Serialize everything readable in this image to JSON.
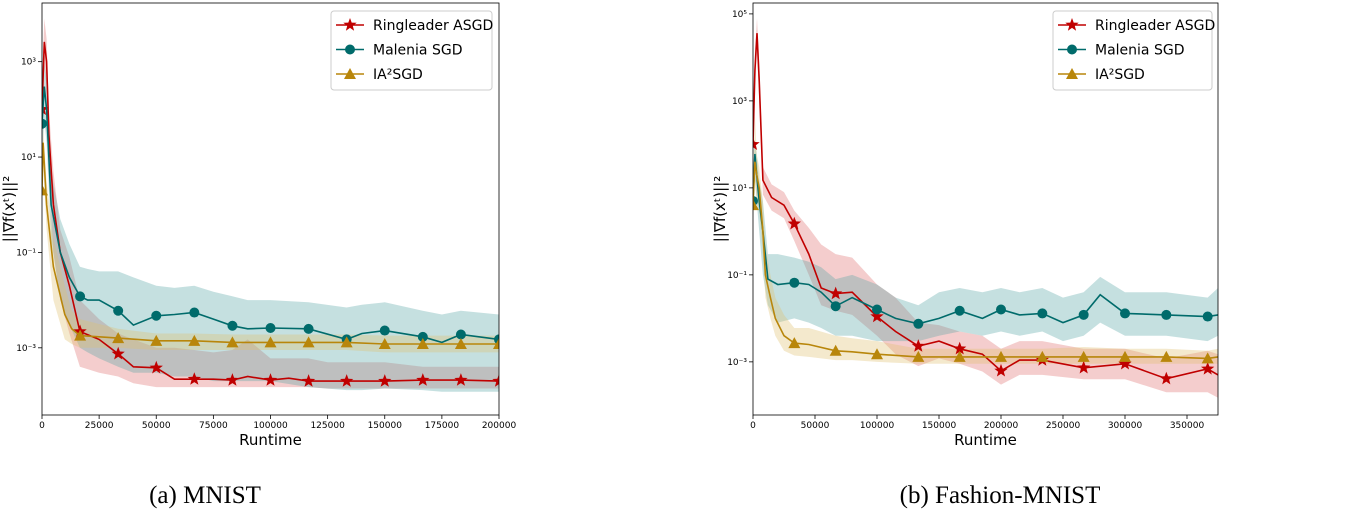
{
  "chart_data": [
    {
      "type": "line",
      "caption": "(a) MNIST",
      "xlabel": "Runtime",
      "ylabel": "||∇f(xᵗ)||²",
      "xlim": [
        0,
        200000
      ],
      "ylim": [
        3.9e-05,
        17000
      ],
      "yscale": "log",
      "grid": false,
      "legend_position": "top-right",
      "x_ticks": [
        {
          "value": 0,
          "label": "0"
        },
        {
          "value": 25000,
          "label": "25000"
        },
        {
          "value": 50000,
          "label": "50000"
        },
        {
          "value": 75000,
          "label": "75000"
        },
        {
          "value": 100000,
          "label": "100000"
        },
        {
          "value": 125000,
          "label": "125000"
        },
        {
          "value": 150000,
          "label": "150000"
        },
        {
          "value": 175000,
          "label": "175000"
        },
        {
          "value": 200000,
          "label": "200000"
        }
      ],
      "y_ticks": [
        {
          "value": 1000,
          "label": "10³"
        },
        {
          "value": 10,
          "label": "10¹"
        },
        {
          "value": 0.1,
          "label": "10⁻¹"
        },
        {
          "value": 0.001,
          "label": "10⁻³"
        }
      ],
      "series": [
        {
          "name": "Ringleader ASGD",
          "color": "#c00000",
          "band_color": "#e07070",
          "marker": "star",
          "x": [
            0,
            1000,
            2000,
            3000,
            5000,
            8000,
            12000,
            16600,
            25000,
            33300,
            40000,
            50000,
            58000,
            66600,
            75000,
            83300,
            90000,
            100000,
            108000,
            116600,
            125000,
            133300,
            150000,
            166600,
            183300,
            200000
          ],
          "y": [
            100,
            2600,
            1000,
            30,
            1,
            0.1,
            0.02,
            0.0022,
            0.0015,
            0.00075,
            0.0004,
            0.00038,
            0.00022,
            0.00022,
            0.00022,
            0.00021,
            0.00025,
            0.00021,
            0.00023,
            0.0002,
            0.0002,
            0.0002,
            0.0002,
            0.00021,
            0.00021,
            0.0002
          ],
          "lower": [
            30,
            800,
            300,
            5,
            0.1,
            0.01,
            0.002,
            0.0004,
            0.0003,
            0.00025,
            0.00018,
            0.00015,
            0.00015,
            0.00015,
            0.00015,
            0.00015,
            0.00015,
            0.00015,
            0.00015,
            0.00015,
            0.00014,
            0.00014,
            0.00014,
            0.00014,
            0.00014,
            0.00014
          ],
          "upper": [
            300,
            8000,
            3000,
            100,
            5,
            0.3,
            0.08,
            0.01,
            0.004,
            0.002,
            0.0015,
            0.001,
            0.001,
            0.0009,
            0.0008,
            0.0009,
            0.0015,
            0.0006,
            0.0006,
            0.0006,
            0.0005,
            0.0005,
            0.0005,
            0.0004,
            0.0004,
            0.0004
          ]
        },
        {
          "name": "Malenia SGD",
          "color": "#006b6b",
          "band_color": "#5aa5a5",
          "marker": "circle",
          "x": [
            0,
            1000,
            2000,
            4000,
            8000,
            12000,
            16600,
            20000,
            25000,
            33300,
            40000,
            50000,
            58000,
            66600,
            75000,
            83300,
            90000,
            100000,
            116600,
            133300,
            140000,
            150000,
            166600,
            175000,
            183300,
            200000
          ],
          "y": [
            50,
            300,
            100,
            1,
            0.1,
            0.03,
            0.012,
            0.01,
            0.01,
            0.006,
            0.003,
            0.0047,
            0.005,
            0.0055,
            0.004,
            0.0029,
            0.0025,
            0.0026,
            0.0025,
            0.0015,
            0.002,
            0.0023,
            0.0017,
            0.0013,
            0.0019,
            0.0015
          ],
          "lower": [
            10,
            60,
            20,
            0.2,
            0.01,
            0.003,
            0.001,
            0.0008,
            0.0006,
            0.0004,
            0.0003,
            0.0003,
            0.00025,
            0.00025,
            0.0002,
            0.0002,
            0.0002,
            0.0002,
            0.00015,
            0.00013,
            0.00013,
            0.00014,
            0.00013,
            0.00012,
            0.00012,
            0.00012
          ],
          "upper": [
            200,
            900,
            400,
            5,
            0.5,
            0.15,
            0.05,
            0.045,
            0.04,
            0.04,
            0.03,
            0.02,
            0.018,
            0.02,
            0.015,
            0.012,
            0.01,
            0.01,
            0.009,
            0.007,
            0.008,
            0.009,
            0.006,
            0.005,
            0.006,
            0.005
          ]
        },
        {
          "name": "IA²SGD",
          "color": "#b8860b",
          "band_color": "#e0c070",
          "marker": "triangle",
          "x": [
            0,
            500,
            2000,
            5000,
            10000,
            13000,
            16600,
            33300,
            50000,
            66600,
            83300,
            100000,
            116600,
            133300,
            150000,
            166600,
            183300,
            200000
          ],
          "y": [
            2,
            20,
            1,
            0.05,
            0.005,
            0.0025,
            0.0018,
            0.0016,
            0.0014,
            0.0014,
            0.0013,
            0.0013,
            0.0013,
            0.0013,
            0.0012,
            0.0012,
            0.0012,
            0.0012
          ],
          "lower": [
            1,
            8,
            0.3,
            0.01,
            0.0015,
            0.0012,
            0.001,
            0.001,
            0.0009,
            0.0009,
            0.0009,
            0.0009,
            0.0009,
            0.0009,
            0.0008,
            0.0008,
            0.0008,
            0.0008
          ],
          "upper": [
            5,
            40,
            3,
            0.2,
            0.02,
            0.006,
            0.004,
            0.0025,
            0.002,
            0.002,
            0.0019,
            0.0019,
            0.0019,
            0.0019,
            0.0018,
            0.0018,
            0.0018,
            0.0018
          ]
        }
      ]
    },
    {
      "type": "line",
      "caption": "(b) Fashion-MNIST",
      "xlabel": "Runtime",
      "ylabel": "||∇f(xᵗ)||²",
      "xlim": [
        0,
        375000
      ],
      "ylim": [
        6e-05,
        178000
      ],
      "yscale": "log",
      "grid": false,
      "legend_position": "top-right",
      "x_ticks": [
        {
          "value": 0,
          "label": "0"
        },
        {
          "value": 50000,
          "label": "50000"
        },
        {
          "value": 100000,
          "label": "100000"
        },
        {
          "value": 150000,
          "label": "150000"
        },
        {
          "value": 200000,
          "label": "200000"
        },
        {
          "value": 250000,
          "label": "250000"
        },
        {
          "value": 300000,
          "label": "300000"
        },
        {
          "value": 350000,
          "label": "350000"
        }
      ],
      "y_ticks": [
        {
          "value": 100000,
          "label": "10⁵"
        },
        {
          "value": 1000,
          "label": "10³"
        },
        {
          "value": 10,
          "label": "10¹"
        },
        {
          "value": 0.1,
          "label": "10⁻¹"
        },
        {
          "value": 0.001,
          "label": "10⁻³"
        }
      ],
      "series": [
        {
          "name": "Ringleader ASGD",
          "color": "#c00000",
          "band_color": "#e07070",
          "marker": "star",
          "x": [
            0,
            1500,
            3200,
            5000,
            8000,
            15000,
            25000,
            33300,
            45000,
            55000,
            66600,
            80000,
            100000,
            115000,
            133300,
            150000,
            166600,
            185000,
            200000,
            215000,
            233300,
            266600,
            300000,
            333300,
            366600,
            375000
          ],
          "y": [
            100,
            5000,
            36000,
            3000,
            15,
            6,
            4,
            1.5,
            0.3,
            0.05,
            0.037,
            0.04,
            0.011,
            0.005,
            0.0023,
            0.003,
            0.002,
            0.0015,
            0.00062,
            0.0011,
            0.0011,
            0.00073,
            0.0009,
            0.00041,
            0.00069,
            0.0005
          ],
          "lower": [
            40,
            2000,
            15000,
            1000,
            7,
            3,
            2,
            0.6,
            0.1,
            0.02,
            0.015,
            0.012,
            0.004,
            0.0015,
            0.0008,
            0.0012,
            0.0009,
            0.0006,
            0.0003,
            0.0005,
            0.0005,
            0.0004,
            0.0004,
            0.0002,
            0.0002,
            0.00015
          ],
          "upper": [
            300,
            12000,
            80000,
            8000,
            30,
            12,
            8,
            3,
            1.2,
            0.5,
            0.3,
            0.25,
            0.06,
            0.03,
            0.008,
            0.007,
            0.005,
            0.004,
            0.002,
            0.003,
            0.003,
            0.002,
            0.002,
            0.0012,
            0.0018,
            0.0015
          ]
        },
        {
          "name": "Malenia SGD",
          "color": "#006b6b",
          "band_color": "#5aa5a5",
          "marker": "circle",
          "x": [
            0,
            1500,
            3000,
            5000,
            8000,
            12000,
            20000,
            33300,
            45000,
            55000,
            66600,
            80000,
            100000,
            115000,
            133300,
            150000,
            166600,
            185000,
            200000,
            215000,
            233300,
            250000,
            266600,
            280000,
            300000,
            333300,
            366600,
            375000
          ],
          "y": [
            5,
            60,
            20,
            5,
            1,
            0.08,
            0.06,
            0.066,
            0.06,
            0.04,
            0.019,
            0.03,
            0.016,
            0.01,
            0.0075,
            0.01,
            0.015,
            0.01,
            0.016,
            0.012,
            0.013,
            0.008,
            0.012,
            0.035,
            0.013,
            0.012,
            0.011,
            0.012
          ],
          "lower": [
            2,
            20,
            5,
            1,
            0.1,
            0.02,
            0.008,
            0.01,
            0.008,
            0.006,
            0.004,
            0.004,
            0.003,
            0.003,
            0.003,
            0.004,
            0.005,
            0.004,
            0.005,
            0.004,
            0.005,
            0.003,
            0.004,
            0.008,
            0.004,
            0.004,
            0.003,
            0.004
          ],
          "upper": [
            20,
            120,
            60,
            15,
            5,
            0.3,
            0.3,
            0.25,
            0.2,
            0.15,
            0.08,
            0.1,
            0.06,
            0.03,
            0.02,
            0.04,
            0.05,
            0.04,
            0.05,
            0.04,
            0.05,
            0.03,
            0.04,
            0.09,
            0.04,
            0.04,
            0.03,
            0.05
          ]
        },
        {
          "name": "IA²SGD",
          "color": "#b8860b",
          "band_color": "#e0c070",
          "marker": "triangle",
          "x": [
            0,
            1500,
            3000,
            5000,
            8000,
            10000,
            14000,
            18000,
            25000,
            33300,
            45000,
            66600,
            80000,
            100000,
            133300,
            166600,
            200000,
            233300,
            266600,
            300000,
            333300,
            366600,
            375000
          ],
          "y": [
            4,
            40,
            20,
            10,
            1,
            0.1,
            0.03,
            0.01,
            0.004,
            0.0027,
            0.0025,
            0.0018,
            0.0017,
            0.0015,
            0.0013,
            0.0013,
            0.0013,
            0.0013,
            0.0013,
            0.0013,
            0.0013,
            0.0012,
            0.0013
          ],
          "lower": [
            2,
            15,
            5,
            3,
            0.3,
            0.03,
            0.01,
            0.004,
            0.0018,
            0.0014,
            0.0013,
            0.0011,
            0.0011,
            0.001,
            0.0009,
            0.0009,
            0.0009,
            0.0009,
            0.0009,
            0.0009,
            0.0009,
            0.0009,
            0.0009
          ],
          "upper": [
            10,
            500,
            60,
            30,
            5,
            0.5,
            0.1,
            0.03,
            0.012,
            0.006,
            0.006,
            0.004,
            0.0035,
            0.003,
            0.002,
            0.002,
            0.002,
            0.002,
            0.0022,
            0.002,
            0.002,
            0.0018,
            0.002
          ]
        }
      ]
    }
  ]
}
